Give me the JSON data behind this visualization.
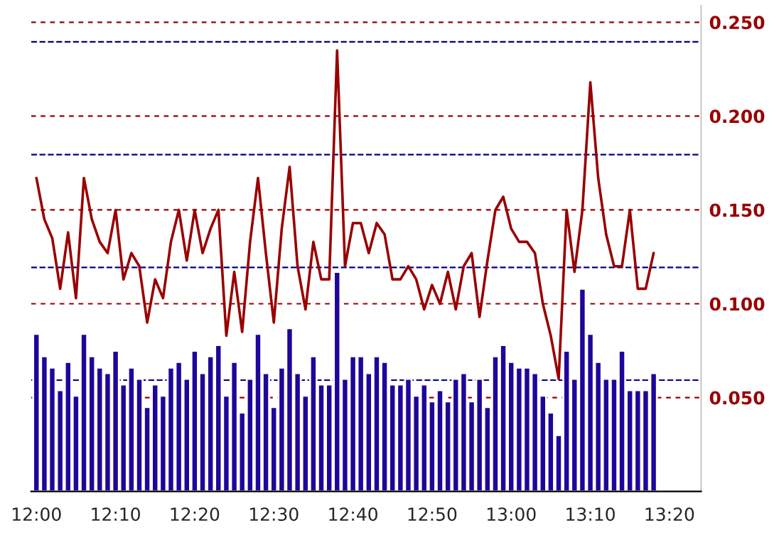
{
  "chart_data": {
    "type": "bar",
    "x": [
      12.0,
      12.0167,
      12.0333,
      12.05,
      12.0667,
      12.0833,
      12.1,
      12.1167,
      12.1333,
      12.15,
      12.1667,
      12.1833,
      12.2,
      12.2167,
      12.2333,
      12.25,
      12.2667,
      12.2833,
      12.3,
      12.3167,
      12.3333,
      12.35,
      12.3667,
      12.3833,
      12.4,
      12.4167,
      12.4333,
      12.45,
      12.4667,
      12.4833,
      12.5,
      12.5167,
      12.5333,
      12.55,
      12.5667,
      12.5833,
      12.6,
      12.6167,
      12.6333,
      12.65,
      12.6667,
      12.6833,
      12.7,
      12.7167,
      12.7333,
      12.75,
      12.7667,
      12.7833,
      12.8,
      12.8167,
      12.8333,
      12.85,
      12.8667,
      12.8833,
      12.9,
      12.9167,
      12.9333,
      12.95,
      12.9667,
      12.9833,
      13.0,
      13.0167,
      13.0333,
      13.05,
      13.0667,
      13.0833,
      13.1,
      13.1167,
      13.1333,
      13.15,
      13.1667,
      13.1833,
      13.2,
      13.2167,
      13.2333,
      13.25,
      13.2667,
      13.2833,
      13.3
    ],
    "series": [
      {
        "color": "#1f0599",
        "values": [
          0.084,
          0.072,
          0.066,
          0.054,
          0.069,
          0.051,
          0.084,
          0.072,
          0.066,
          0.063,
          0.075,
          0.057,
          0.066,
          0.06,
          0.045,
          0.057,
          0.051,
          0.066,
          0.069,
          0.06,
          0.075,
          0.063,
          0.072,
          0.078,
          0.051,
          0.069,
          0.042,
          0.06,
          0.084,
          0.063,
          0.045,
          0.066,
          0.087,
          0.063,
          0.051,
          0.072,
          0.057,
          0.057,
          0.117,
          0.06,
          0.072,
          0.072,
          0.063,
          0.072,
          0.069,
          0.057,
          0.057,
          0.06,
          0.051,
          0.057,
          0.048,
          0.054,
          0.048,
          0.06,
          0.063,
          0.048,
          0.06,
          0.045,
          0.072,
          0.078,
          0.069,
          0.066,
          0.066,
          0.063,
          0.051,
          0.042,
          0.03,
          0.075,
          0.06,
          0.108,
          0.084,
          0.069,
          0.06,
          0.06,
          0.075,
          0.054,
          0.054,
          0.054,
          0.063
        ]
      },
      {
        "type": "line",
        "color": "#990000",
        "values": [
          0.167,
          0.145,
          0.135,
          0.108,
          0.138,
          0.103,
          0.167,
          0.145,
          0.133,
          0.127,
          0.15,
          0.113,
          0.127,
          0.12,
          0.09,
          0.113,
          0.103,
          0.133,
          0.15,
          0.123,
          0.15,
          0.127,
          0.14,
          0.15,
          0.083,
          0.117,
          0.085,
          0.133,
          0.167,
          0.127,
          0.09,
          0.14,
          0.173,
          0.12,
          0.097,
          0.133,
          0.113,
          0.113,
          0.235,
          0.12,
          0.143,
          0.143,
          0.127,
          0.143,
          0.137,
          0.113,
          0.113,
          0.12,
          0.113,
          0.097,
          0.11,
          0.1,
          0.117,
          0.097,
          0.12,
          0.127,
          0.093,
          0.123,
          0.15,
          0.157,
          0.14,
          0.133,
          0.133,
          0.127,
          0.1,
          0.083,
          0.06,
          0.15,
          0.117,
          0.15,
          0.218,
          0.167,
          0.137,
          0.12,
          0.12,
          0.15,
          0.108,
          0.108,
          0.127
        ]
      }
    ],
    "xlim": [
      11.9889,
      13.4
    ],
    "xticks": [
      {
        "value": 12.0,
        "label": "12:00"
      },
      {
        "value": 12.1667,
        "label": "12:10"
      },
      {
        "value": 12.3333,
        "label": "12:20"
      },
      {
        "value": 12.5,
        "label": "12:30"
      },
      {
        "value": 12.6667,
        "label": "12:40"
      },
      {
        "value": 12.8333,
        "label": "12:50"
      },
      {
        "value": 13.0,
        "label": "13:00"
      },
      {
        "value": 13.1667,
        "label": "13:10"
      },
      {
        "value": 13.3333,
        "label": "13:20"
      }
    ],
    "ylim": [
      0,
      0.259
    ],
    "yticks": [
      {
        "value": 0.05,
        "label": "0.050"
      },
      {
        "value": 0.1,
        "label": "0.100"
      },
      {
        "value": 0.15,
        "label": "0.150"
      },
      {
        "value": 0.2,
        "label": "0.200"
      },
      {
        "value": 0.25,
        "label": "0.250"
      }
    ],
    "grid": "y",
    "ref_lines": [
      {
        "axis": "y",
        "value": 0.0593,
        "color": "#000080",
        "line_style": "dashed"
      },
      {
        "axis": "y",
        "value": 0.1194,
        "color": "#000080",
        "line_style": "dashed"
      },
      {
        "axis": "y",
        "value": 0.1795,
        "color": "#000080",
        "line_style": "dashed"
      },
      {
        "axis": "y",
        "value": 0.2396,
        "color": "#000080",
        "line_style": "dashed"
      }
    ],
    "marker": "none",
    "line_style": "solid"
  }
}
